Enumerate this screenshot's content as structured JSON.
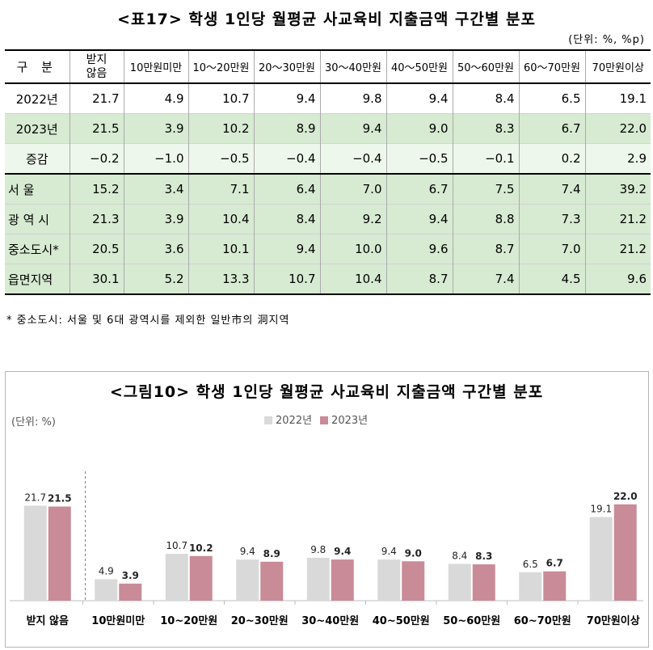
{
  "table": {
    "title": "<표17> 학생 1인당 월평균 사교육비 지출금액 구간별 분포",
    "unit": "(단위: %, %p)",
    "headers": [
      "구 분",
      "받지 않음",
      "10만원미만",
      "10～20만원",
      "20～30만원",
      "30～40만원",
      "40～50만원",
      "50～60만원",
      "60～70만원",
      "70만원이상"
    ],
    "rows": [
      {
        "label": "2022년",
        "values": [
          "21.7",
          "4.9",
          "10.7",
          "9.4",
          "9.8",
          "9.4",
          "8.4",
          "6.5",
          "19.1"
        ]
      },
      {
        "label": "2023년",
        "values": [
          "21.5",
          "3.9",
          "10.2",
          "8.9",
          "9.4",
          "9.0",
          "8.3",
          "6.7",
          "22.0"
        ]
      },
      {
        "label": "증감",
        "values": [
          "−0.2",
          "−1.0",
          "−0.5",
          "−0.4",
          "−0.4",
          "−0.5",
          "−0.1",
          "0.2",
          "2.9"
        ]
      },
      {
        "label": "서 울",
        "values": [
          "15.2",
          "3.4",
          "7.1",
          "6.4",
          "7.0",
          "6.7",
          "7.5",
          "7.4",
          "39.2"
        ]
      },
      {
        "label": "광 역 시",
        "values": [
          "21.3",
          "3.9",
          "10.4",
          "8.4",
          "9.2",
          "9.4",
          "8.8",
          "7.3",
          "21.2"
        ]
      },
      {
        "label": "중소도시*",
        "values": [
          "20.5",
          "3.6",
          "10.1",
          "9.4",
          "10.0",
          "9.6",
          "8.7",
          "7.0",
          "21.2"
        ]
      },
      {
        "label": "읍면지역",
        "values": [
          "30.1",
          "5.2",
          "13.3",
          "10.7",
          "10.4",
          "8.7",
          "7.4",
          "4.5",
          "9.6"
        ]
      }
    ],
    "footnote": "* 중소도시: 서울 및 6대 광역시를 제외한 일반市의 洞지역"
  },
  "colors": {
    "green_dark": "#d7ead2",
    "green_light": "#eef7eb",
    "bar_2022": "#d9d9d9",
    "bar_2023": "#c98b98"
  },
  "chart_data": {
    "type": "bar",
    "title": "<그림10> 학생 1인당 월평균 사교육비 지출금액 구간별 분포",
    "unit_label": "(단위: %)",
    "categories": [
      "받지 않음",
      "10만원미만",
      "10~20만원",
      "20~30만원",
      "30~40만원",
      "40~50만원",
      "50~60만원",
      "60~70만원",
      "70만원이상"
    ],
    "series": [
      {
        "name": "2022년",
        "values": [
          21.7,
          4.9,
          10.7,
          9.4,
          9.8,
          9.4,
          8.4,
          6.5,
          19.1
        ]
      },
      {
        "name": "2023년",
        "values": [
          21.5,
          3.9,
          10.2,
          8.9,
          9.4,
          9.0,
          8.3,
          6.7,
          22.0
        ]
      }
    ],
    "ylim": [
      0,
      24
    ],
    "grid": false,
    "legend": "top"
  }
}
